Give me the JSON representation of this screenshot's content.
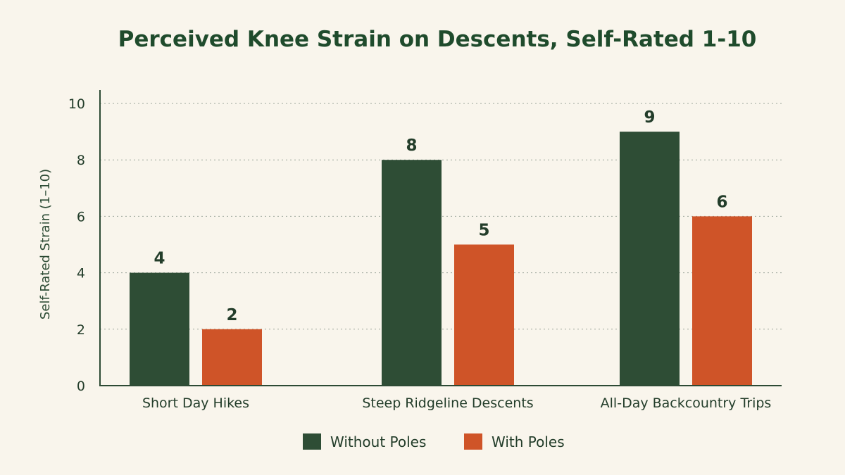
{
  "chart_data": {
    "type": "bar",
    "title": "Perceived Knee Strain on Descents, Self-Rated 1-10",
    "xlabel": "",
    "ylabel": "Self-Rated Strain (1–10)",
    "categories": [
      "Short Day Hikes",
      "Steep Ridgeline Descents",
      "All-Day Backcountry Trips"
    ],
    "series": [
      {
        "name": "Without Poles",
        "color": "#2e4d35",
        "values": [
          4,
          8,
          9
        ]
      },
      {
        "name": "With Poles",
        "color": "#cf5428",
        "values": [
          2,
          5,
          6
        ]
      }
    ],
    "ylim": [
      0,
      10
    ],
    "yticks": [
      "0",
      "2",
      "4",
      "6",
      "8",
      "10"
    ],
    "grid": true,
    "legend_position": "bottom-center",
    "data_labels": true
  }
}
